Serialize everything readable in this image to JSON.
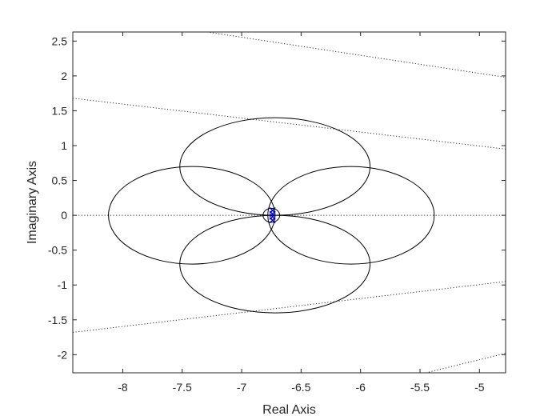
{
  "chart_data": {
    "type": "line",
    "title": "",
    "xlabel": "Real Axis",
    "ylabel": "Imaginary Axis",
    "xlim": [
      -8.42,
      -4.78
    ],
    "ylim": [
      -2.26,
      2.63
    ],
    "grid": false,
    "box": true,
    "xticks": [
      -8,
      -7.5,
      -7,
      -6.5,
      -6,
      -5.5,
      -5
    ],
    "xtick_labels": [
      "-8",
      "-7.5",
      "-7",
      "-6.5",
      "-6",
      "-5.5",
      "-5"
    ],
    "yticks": [
      2.5,
      2,
      1.5,
      1,
      0.5,
      0,
      -0.5,
      -1,
      -1.5,
      -2
    ],
    "ytick_labels": [
      "2.5",
      "2",
      "1.5",
      "1",
      "0.5",
      "0",
      "-0.5",
      "-1",
      "-1.5",
      "-2"
    ],
    "colors": {
      "axis": "#262626",
      "curve": "#000000",
      "guide": "#333333",
      "marker": "#0000cc"
    },
    "ellipses": [
      {
        "name": "top",
        "center": [
          -6.72,
          0.7
        ],
        "rx": 0.8,
        "ry": 0.7
      },
      {
        "name": "left",
        "center": [
          -7.42,
          0.0
        ],
        "rx": 0.7,
        "ry": 0.7
      },
      {
        "name": "right",
        "center": [
          -6.08,
          0.0
        ],
        "rx": 0.7,
        "ry": 0.7
      },
      {
        "name": "bottom",
        "center": [
          -6.72,
          -0.7
        ],
        "rx": 0.8,
        "ry": 0.7
      },
      {
        "name": "center-small",
        "center": [
          -6.75,
          0.0
        ],
        "rx": 0.07,
        "ry": 0.1
      }
    ],
    "dotted_lines": [
      {
        "name": "real-axis-line",
        "points": [
          [
            -8.42,
            0.0
          ],
          [
            -4.78,
            0.0
          ]
        ]
      },
      {
        "name": "damping-line-upper-inner",
        "points": [
          [
            -8.42,
            1.68
          ],
          [
            -4.78,
            0.95
          ]
        ]
      },
      {
        "name": "damping-line-lower-inner",
        "points": [
          [
            -8.42,
            -1.68
          ],
          [
            -4.78,
            -0.95
          ]
        ]
      },
      {
        "name": "damping-line-upper-outer",
        "points": [
          [
            -7.29,
            2.63
          ],
          [
            -4.78,
            1.98
          ]
        ]
      },
      {
        "name": "damping-line-lower-outer",
        "points": [
          [
            -5.45,
            -2.26
          ],
          [
            -4.78,
            -1.98
          ]
        ]
      }
    ],
    "markers": {
      "symbol": "x",
      "points": [
        [
          -6.74,
          0.07
        ],
        [
          -6.74,
          0.02
        ],
        [
          -6.74,
          -0.02
        ],
        [
          -6.74,
          -0.07
        ]
      ]
    }
  }
}
